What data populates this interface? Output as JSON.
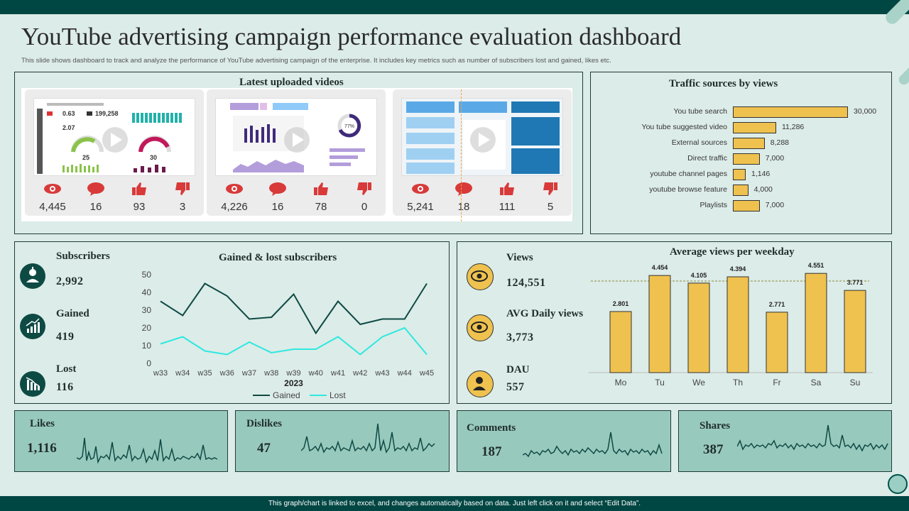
{
  "header": {
    "title": "YouTube advertising campaign performance evaluation dashboard",
    "subtitle": "This slide shows dashboard to track and analyze the performance of YouTube advertising campaign of the enterprise. It includes key metrics such as number of subscribers lost and gained, likes etc."
  },
  "videos": {
    "title": "Latest uploaded videos",
    "cards": [
      {
        "views": "4,445",
        "comments": "16",
        "likes": "93",
        "dislikes": "3"
      },
      {
        "views": "4,226",
        "comments": "16",
        "likes": "78",
        "dislikes": "0"
      },
      {
        "views": "5,241",
        "comments": "18",
        "likes": "111",
        "dislikes": "5"
      }
    ],
    "thumb1": {
      "kpi1": "0.63",
      "kpi2": "199,258",
      "kpi3": "2.07",
      "gauge1": "25",
      "gauge2": "30"
    },
    "thumb2": {
      "donut": "77%"
    }
  },
  "traffic": {
    "title": "Traffic sources by views",
    "chart_data": {
      "type": "bar",
      "orientation": "horizontal",
      "categories": [
        "You tube search",
        "You tube suggested video",
        "External sources",
        "Direct traffic",
        "youtube channel pages",
        "youtube browse feature",
        "Playlists"
      ],
      "values": [
        30000,
        11286,
        8288,
        7000,
        1146,
        4000,
        7000
      ],
      "labels": [
        "30,000",
        "11,286",
        "8,288",
        "7,000",
        "1,146",
        "4,000",
        "7,000"
      ],
      "title": "Traffic sources by views"
    }
  },
  "subscribers": {
    "subscribers_label": "Subscribers",
    "subscribers_value": "2,992",
    "gained_label": "Gained",
    "gained_value": "419",
    "lost_label": "Lost",
    "lost_value": "116",
    "chart_title": "Gained & lost subscribers",
    "chart_data": {
      "type": "line",
      "title": "Gained & lost subscribers",
      "xlabel": "2023",
      "categories": [
        "w33",
        "w34",
        "w35",
        "w36",
        "w37",
        "w38",
        "w39",
        "w40",
        "w41",
        "w42",
        "w43",
        "w44",
        "w45"
      ],
      "series": [
        {
          "name": "Gained",
          "color": "#0e4a44",
          "values": [
            35,
            27,
            45,
            38,
            25,
            26,
            39,
            17,
            35,
            22,
            25,
            25,
            45
          ]
        },
        {
          "name": "Lost",
          "color": "#2ee8e0",
          "values": [
            11,
            15,
            7,
            5,
            12,
            6,
            8,
            8,
            15,
            5,
            15,
            20,
            5
          ]
        }
      ],
      "yticks": [
        "0",
        "10",
        "20",
        "30",
        "40",
        "50"
      ],
      "ylim": [
        0,
        50
      ]
    }
  },
  "views": {
    "views_label": "Views",
    "views_value": "124,551",
    "avg_label": "AVG Daily views",
    "avg_value": "3,773",
    "dau_label": "DAU",
    "dau_value": "557",
    "chart_title": "Average views per weekday",
    "chart_data": {
      "type": "bar",
      "title": "Average views per weekday",
      "categories": [
        "Mo",
        "Tu",
        "We",
        "Th",
        "Fr",
        "Sa",
        "Su"
      ],
      "values": [
        2.801,
        4.454,
        4.105,
        4.394,
        2.771,
        4.551,
        3.771
      ],
      "labels": [
        "2.801",
        "4.454",
        "4.105",
        "4.394",
        "2.771",
        "4.551",
        "3.771"
      ],
      "average": 4.2,
      "ylim": [
        0,
        5.5
      ]
    }
  },
  "engagement": {
    "likes_label": "Likes",
    "likes_value": "1,116",
    "dislikes_label": "Dislikes",
    "dislikes_value": "47",
    "comments_label": "Comments",
    "comments_value": "187",
    "shares_label": "Shares",
    "shares_value": "387"
  },
  "footer": {
    "note": "This graph/chart is linked to excel, and changes automatically based on data. Just left click on it and select “Edit Data”."
  },
  "colors": {
    "dark": "#004643",
    "bar": "#efc24f",
    "panel": "#98c9bd",
    "lost": "#2ee8e0"
  }
}
